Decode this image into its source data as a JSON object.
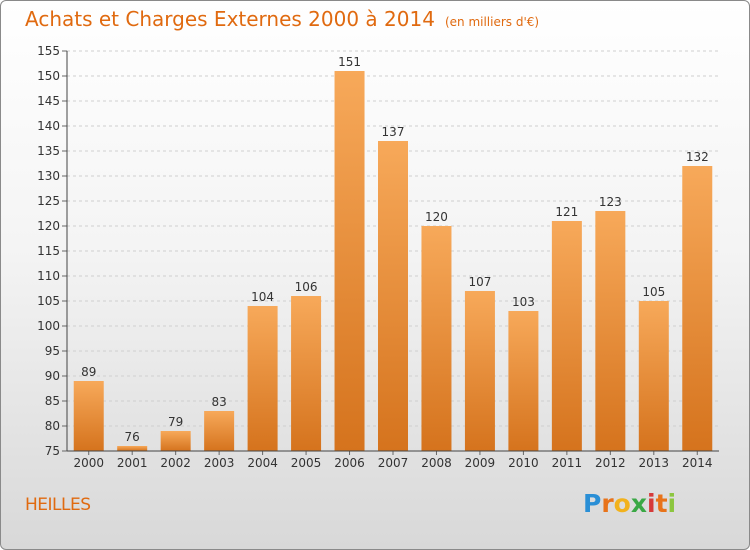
{
  "header": {
    "title": "Achats et Charges Externes 2000 à 2014",
    "unit": "(en milliers d'€)"
  },
  "footer": {
    "commune": "HEILLES",
    "logo_text": "Proxiti"
  },
  "colors": {
    "accent": "#e06a10",
    "bar_light": "#f6a552",
    "bar_dark": "#d8741c"
  },
  "chart_data": {
    "type": "bar",
    "title": "Achats et Charges Externes 2000 à 2014",
    "subtitle": "(en milliers d'€)",
    "categories": [
      "2000",
      "2001",
      "2002",
      "2003",
      "2004",
      "2005",
      "2006",
      "2007",
      "2008",
      "2009",
      "2010",
      "2011",
      "2012",
      "2013",
      "2014"
    ],
    "values": [
      89,
      76,
      79,
      83,
      104,
      106,
      151,
      137,
      120,
      107,
      103,
      121,
      123,
      105,
      132
    ],
    "ylim": [
      75,
      155
    ],
    "yticks": [
      75,
      80,
      85,
      90,
      95,
      100,
      105,
      110,
      115,
      120,
      125,
      130,
      135,
      140,
      145,
      150,
      155
    ],
    "grid": true
  }
}
